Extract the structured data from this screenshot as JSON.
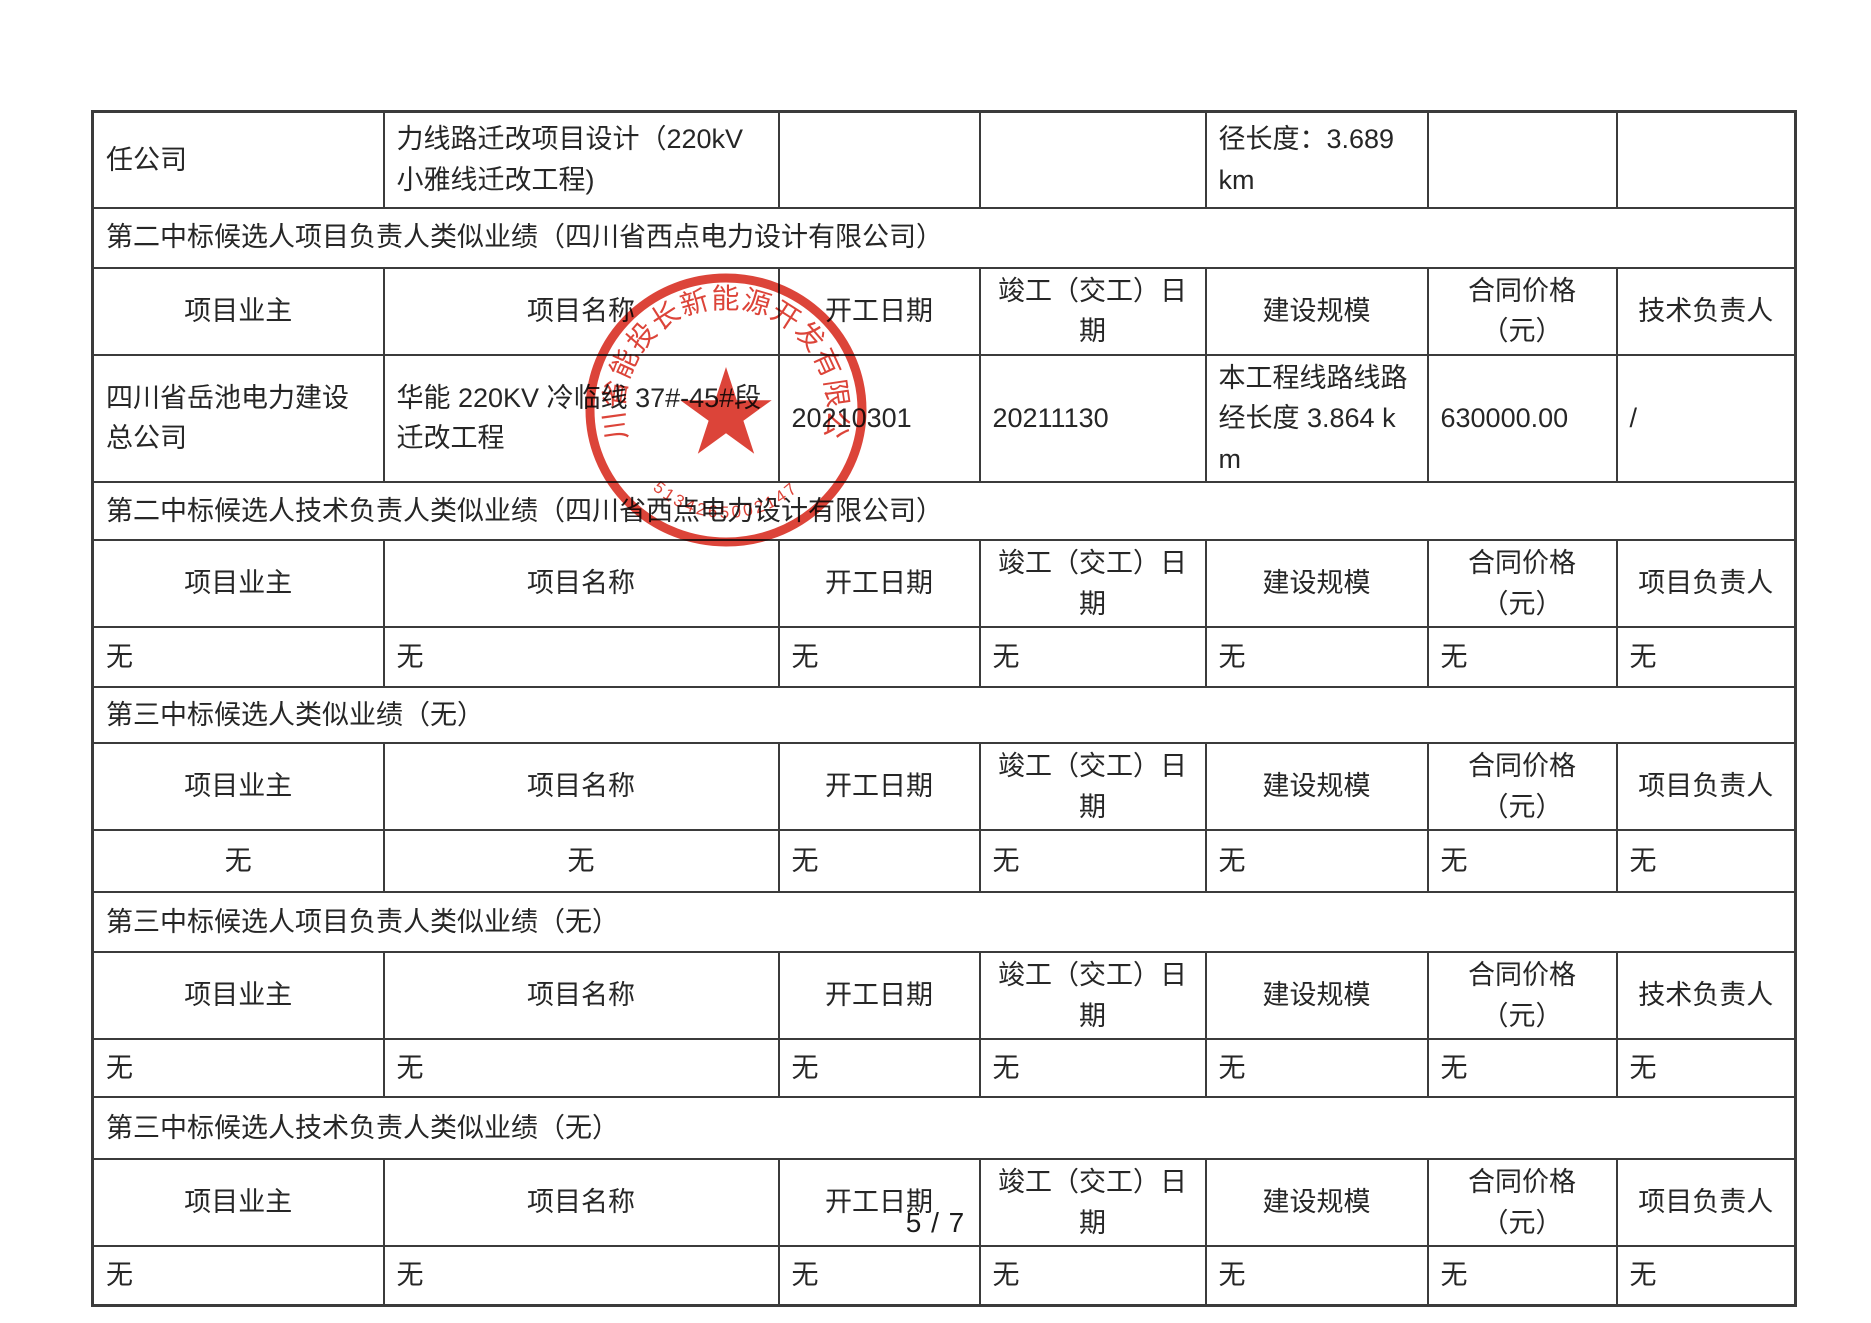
{
  "document": {
    "footer_page_number": "5 / 7"
  },
  "table": {
    "rows": [
      {
        "type": "cells",
        "valign": "top",
        "cells": [
          {
            "text": "任公司"
          },
          {
            "text": "力线路迁改项目设计（220kV 小雅线迁改工程)"
          },
          {
            "text": ""
          },
          {
            "text": ""
          },
          {
            "text": "径长度：3.689 km"
          },
          {
            "text": ""
          },
          {
            "text": ""
          }
        ]
      },
      {
        "type": "section",
        "text": "第二中标候选人项目负责人类似业绩（四川省西点电力设计有限公司）"
      },
      {
        "type": "header",
        "cells": [
          "项目业主",
          "项目名称",
          "开工日期",
          "竣工（交工）日期",
          "建设规模",
          "合同价格（元）",
          "技术负责人"
        ]
      },
      {
        "type": "cells",
        "cells": [
          {
            "text": "四川省岳池电力建设总公司"
          },
          {
            "text": "华能 220KV 冷临线 37#-45#段迁改工程"
          },
          {
            "text": "20210301"
          },
          {
            "text": "20211130"
          },
          {
            "text": "本工程线路线路经长度 3.864 km"
          },
          {
            "text": "630000.00"
          },
          {
            "text": "/"
          }
        ]
      },
      {
        "type": "section",
        "text": "第二中标候选人技术负责人类似业绩（四川省西点电力设计有限公司）"
      },
      {
        "type": "header",
        "cells": [
          "项目业主",
          "项目名称",
          "开工日期",
          "竣工（交工）日期",
          "建设规模",
          "合同价格（元）",
          "项目负责人"
        ]
      },
      {
        "type": "cells",
        "cells": [
          {
            "text": "无"
          },
          {
            "text": "无"
          },
          {
            "text": "无"
          },
          {
            "text": "无"
          },
          {
            "text": "无"
          },
          {
            "text": "无"
          },
          {
            "text": "无"
          }
        ]
      },
      {
        "type": "section",
        "text": "第三中标候选人类似业绩（无）"
      },
      {
        "type": "header",
        "cells": [
          "项目业主",
          "项目名称",
          "开工日期",
          "竣工（交工）日期",
          "建设规模",
          "合同价格（元）",
          "项目负责人"
        ]
      },
      {
        "type": "cells",
        "cells": [
          {
            "text": "无",
            "align": "center"
          },
          {
            "text": "无",
            "align": "center"
          },
          {
            "text": "无"
          },
          {
            "text": "无"
          },
          {
            "text": "无"
          },
          {
            "text": "无"
          },
          {
            "text": "无"
          }
        ]
      },
      {
        "type": "section",
        "text": "第三中标候选人项目负责人类似业绩（无）"
      },
      {
        "type": "header",
        "cells": [
          "项目业主",
          "项目名称",
          "开工日期",
          "竣工（交工）日期",
          "建设规模",
          "合同价格（元）",
          "技术负责人"
        ]
      },
      {
        "type": "cells",
        "cells": [
          {
            "text": "无"
          },
          {
            "text": "无"
          },
          {
            "text": "无"
          },
          {
            "text": "无"
          },
          {
            "text": "无"
          },
          {
            "text": "无"
          },
          {
            "text": "无"
          }
        ]
      },
      {
        "type": "section",
        "text": "第三中标候选人技术负责人类似业绩（无）"
      },
      {
        "type": "header",
        "cells": [
          "项目业主",
          "项目名称",
          "开工日期",
          "竣工（交工）日期",
          "建设规模",
          "合同价格（元）",
          "项目负责人"
        ]
      },
      {
        "type": "cells",
        "cells": [
          {
            "text": "无"
          },
          {
            "text": "无"
          },
          {
            "text": "无"
          },
          {
            "text": "无"
          },
          {
            "text": "无"
          },
          {
            "text": "无"
          },
          {
            "text": "无"
          }
        ]
      }
    ]
  },
  "stamp": {
    "ring_text": "四川省能投长新能源开发有限公司",
    "serial_number": "5134265002147",
    "color": "#d92f23"
  },
  "colors": {
    "border": "#3b3b3b",
    "text": "#262626",
    "stamp_red": "#d92f23"
  }
}
